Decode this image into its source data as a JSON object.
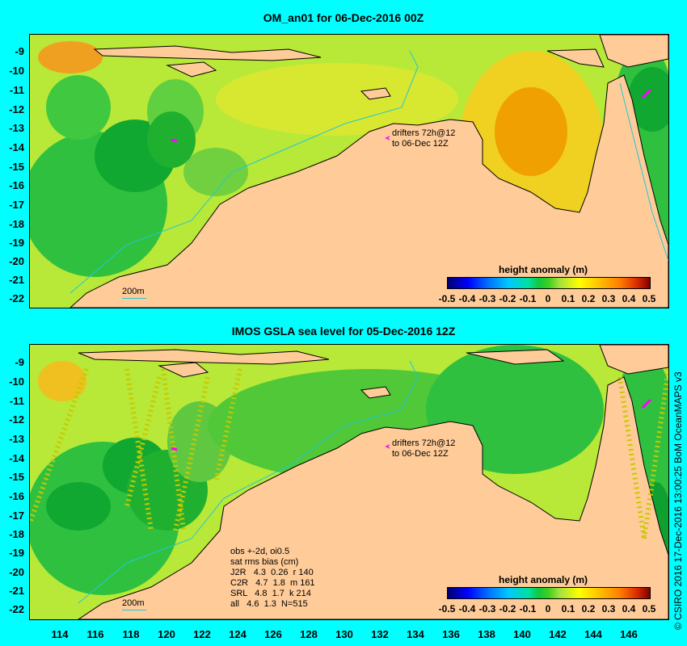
{
  "panels": [
    {
      "title": "OM_an01 for 06-Dec-2016 00Z",
      "drifter_note_line1": "drifters 72h@12",
      "drifter_note_line2": "to 06-Dec 12Z",
      "scale_label": "200m",
      "colorbar_title": "height anomaly (m)"
    },
    {
      "title": "IMOS GSLA sea level  for 05-Dec-2016 12Z",
      "drifter_note_line1": "drifters 72h@12",
      "drifter_note_line2": "to 06-Dec 12Z",
      "scale_label": "200m",
      "colorbar_title": "height anomaly (m)",
      "stats": {
        "line1": "obs +-2d, oi0.5",
        "line2": "sat rms bias (cm)",
        "rows": [
          "J2R   4.3  0.26  r 140",
          "C2R   4.7  1.8  m 161",
          "SRL   4.8  1.7  k 214",
          "all   4.6  1.3  N=515"
        ]
      }
    }
  ],
  "lat_labels": [
    "-9",
    "-10",
    "-11",
    "-12",
    "-13",
    "-14",
    "-15",
    "-16",
    "-17",
    "-18",
    "-19",
    "-20",
    "-21",
    "-22"
  ],
  "lon_labels": [
    "114",
    "116",
    "118",
    "120",
    "122",
    "124",
    "126",
    "128",
    "130",
    "132",
    "134",
    "136",
    "138",
    "140",
    "142",
    "144",
    "146"
  ],
  "colorbar_ticks": [
    "-0.5",
    "-0.4",
    "-0.3",
    "-0.2",
    "-0.1",
    "0",
    "0.1",
    "0.2",
    "0.3",
    "0.4",
    "0.5"
  ],
  "credit": "© CSIRO 2016  17-Dec-2016 13:00:25 BoM OceanMAPS v3",
  "colors": {
    "background": "#00ffff",
    "land": "#ffcc99",
    "ocean_low": "#10b030",
    "ocean_mid": "#80d830",
    "ocean_high": "#f0e020",
    "ocean_peak": "#f0a000",
    "drifter": "#ff00ff",
    "isobath": "#20c8d8"
  },
  "map_extent": {
    "lon_min": 112,
    "lon_max": 147,
    "lat_min": -22.5,
    "lat_max": -8.5
  }
}
